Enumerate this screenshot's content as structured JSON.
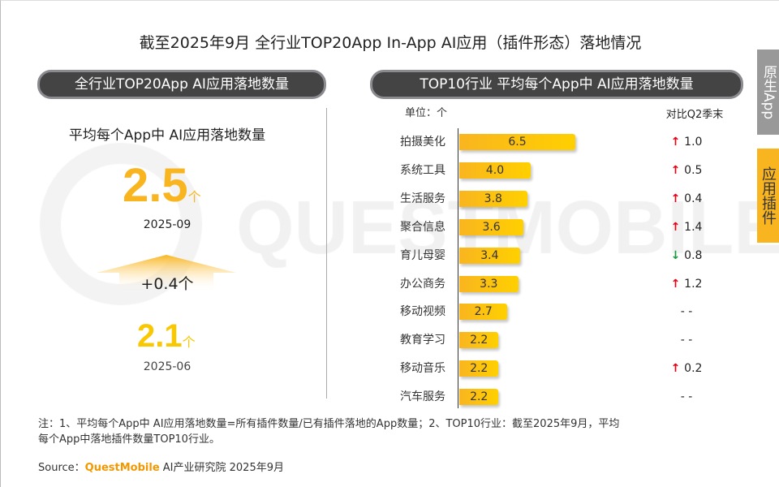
{
  "title": "截至2025年9月 全行业TOP20App In-App AI应用（插件形态）落地情况",
  "left_panel": {
    "header": "全行业TOP20App AI应用落地数量",
    "subtitle": "平均每个App中 AI应用落地数量",
    "current": {
      "value": "2.5",
      "unit": "个",
      "date": "2025-09"
    },
    "change": "+0.4个",
    "previous": {
      "value": "2.1",
      "unit": "个",
      "date": "2025-06"
    }
  },
  "right_panel": {
    "header": "TOP10行业 平均每个App中 AI应用落地数量"
  },
  "side_tabs": [
    {
      "label": "原生App",
      "color": "#999999"
    },
    {
      "label": "应用插件",
      "color": "#f9b51f"
    }
  ],
  "watermark": "QUESTMOBILE",
  "chart_data": {
    "type": "bar",
    "orientation": "horizontal",
    "unit_label": "单位：个",
    "comparison_header": "对比Q2季末",
    "categories": [
      "拍摄美化",
      "系统工具",
      "生活服务",
      "聚合信息",
      "育儿母婴",
      "办公商务",
      "移动视频",
      "教育学习",
      "移动音乐",
      "汽车服务"
    ],
    "values": [
      6.5,
      4.0,
      3.8,
      3.6,
      3.4,
      3.3,
      2.7,
      2.2,
      2.2,
      2.2
    ],
    "value_labels": [
      "6.5",
      "4.0",
      "3.8",
      "3.6",
      "3.4",
      "3.3",
      "2.7",
      "2.2",
      "2.2",
      "2.2"
    ],
    "comparison": [
      {
        "dir": "up",
        "text": "1.0"
      },
      {
        "dir": "up",
        "text": "0.5"
      },
      {
        "dir": "up",
        "text": "0.4"
      },
      {
        "dir": "up",
        "text": "1.4"
      },
      {
        "dir": "down",
        "text": "0.8"
      },
      {
        "dir": "up",
        "text": "1.2"
      },
      {
        "dir": "none",
        "text": "- -"
      },
      {
        "dir": "none",
        "text": "- -"
      },
      {
        "dir": "up",
        "text": "0.2"
      },
      {
        "dir": "none",
        "text": "- -"
      }
    ],
    "colors": {
      "bar": "#f9b51f",
      "up": "#e60012",
      "down": "#1a9a3c"
    }
  },
  "notes": {
    "line1": "注：1、平均每个App中 AI应用落地数量=所有插件数量/已有插件落地的App数量；2、TOP10行业：截至2025年9月，平均",
    "line2": "每个App中落地插件数量TOP10行业。",
    "source_prefix": "Source：",
    "source_brand": "QuestMobile",
    "source_suffix": " AI产业研究院 2025年9月"
  }
}
